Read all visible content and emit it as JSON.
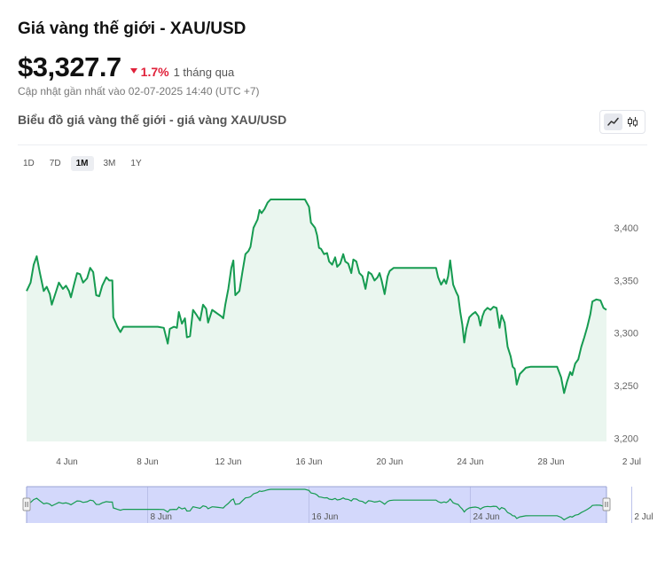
{
  "header": {
    "title": "Giá vàng thế giới - XAU/USD",
    "price": "$3,327.7",
    "change": "1.7%",
    "period": "1 tháng qua",
    "updated": "Cập nhật gần nhất vào 02-07-2025 14:40 (UTC +7)"
  },
  "chart_section": {
    "title": "Biểu đồ giá vàng thế giới - giá vàng XAU/USD",
    "ranges": [
      "1D",
      "7D",
      "1M",
      "3M",
      "1Y"
    ],
    "active_range": "1M",
    "chart_types": [
      "line-chart-icon",
      "candlestick-icon"
    ],
    "active_chart_type": "line-chart-icon"
  },
  "colors": {
    "line": "#169b51",
    "area": "#eaf6ef",
    "navigator_fill": "#d3d8fb",
    "down": "#e0213a"
  },
  "chart_data": {
    "type": "area",
    "title": "",
    "xlabel": "",
    "ylabel": "",
    "ylim": [
      3197,
      3427
    ],
    "y_ticks": [
      3200,
      3250,
      3300,
      3350,
      3400
    ],
    "y_tick_labels": [
      "3,200",
      "3,250",
      "3,300",
      "3,350",
      "3,400"
    ],
    "x_ticks": [
      4,
      8,
      12,
      16,
      20,
      24,
      28,
      32
    ],
    "x_tick_labels": [
      "4 Jun",
      "8 Jun",
      "12 Jun",
      "16 Jun",
      "20 Jun",
      "24 Jun",
      "28 Jun",
      "2 Jul"
    ],
    "navigator_ticks": [
      8,
      16,
      24,
      32
    ],
    "navigator_tick_labels": [
      "8 Jun",
      "16 Jun",
      "24 Jun",
      "2 Jul"
    ],
    "x_unit": "day of June 2025 (32 = 2 Jul)",
    "series": [
      {
        "points": [
          [
            2.0,
            3340
          ],
          [
            2.2,
            3348
          ],
          [
            2.35,
            3365
          ],
          [
            2.5,
            3373
          ],
          [
            2.65,
            3358
          ],
          [
            2.85,
            3340
          ],
          [
            3.0,
            3344
          ],
          [
            3.15,
            3337
          ],
          [
            3.25,
            3327
          ],
          [
            3.45,
            3339
          ],
          [
            3.6,
            3348
          ],
          [
            3.8,
            3342
          ],
          [
            3.95,
            3345
          ],
          [
            4.1,
            3340
          ],
          [
            4.2,
            3334
          ],
          [
            4.35,
            3346
          ],
          [
            4.5,
            3357
          ],
          [
            4.65,
            3356
          ],
          [
            4.8,
            3348
          ],
          [
            5.0,
            3352
          ],
          [
            5.15,
            3362
          ],
          [
            5.3,
            3358
          ],
          [
            5.45,
            3336
          ],
          [
            5.6,
            3335
          ],
          [
            5.75,
            3345
          ],
          [
            5.95,
            3353
          ],
          [
            6.1,
            3350
          ],
          [
            6.25,
            3350
          ],
          [
            6.3,
            3315
          ],
          [
            6.5,
            3306
          ],
          [
            6.65,
            3301
          ],
          [
            6.8,
            3306
          ],
          [
            7.0,
            3306
          ],
          [
            7.5,
            3306
          ],
          [
            8.0,
            3306
          ],
          [
            8.5,
            3306
          ],
          [
            8.8,
            3305
          ],
          [
            9.0,
            3290
          ],
          [
            9.1,
            3304
          ],
          [
            9.3,
            3306
          ],
          [
            9.45,
            3305
          ],
          [
            9.55,
            3320
          ],
          [
            9.7,
            3309
          ],
          [
            9.85,
            3314
          ],
          [
            9.95,
            3296
          ],
          [
            10.1,
            3297
          ],
          [
            10.25,
            3322
          ],
          [
            10.4,
            3318
          ],
          [
            10.6,
            3312
          ],
          [
            10.75,
            3327
          ],
          [
            10.9,
            3323
          ],
          [
            11.0,
            3310
          ],
          [
            11.2,
            3322
          ],
          [
            11.35,
            3320
          ],
          [
            11.5,
            3318
          ],
          [
            11.65,
            3316
          ],
          [
            11.75,
            3314
          ],
          [
            11.85,
            3327
          ],
          [
            12.0,
            3342
          ],
          [
            12.15,
            3362
          ],
          [
            12.25,
            3369
          ],
          [
            12.35,
            3336
          ],
          [
            12.55,
            3340
          ],
          [
            12.7,
            3358
          ],
          [
            12.85,
            3375
          ],
          [
            13.0,
            3378
          ],
          [
            13.1,
            3382
          ],
          [
            13.25,
            3400
          ],
          [
            13.35,
            3404
          ],
          [
            13.45,
            3408
          ],
          [
            13.55,
            3417
          ],
          [
            13.65,
            3414
          ],
          [
            13.8,
            3418
          ],
          [
            13.95,
            3424
          ],
          [
            14.1,
            3427
          ],
          [
            14.5,
            3427
          ],
          [
            15.0,
            3427
          ],
          [
            15.5,
            3427
          ],
          [
            15.8,
            3427
          ],
          [
            16.0,
            3420
          ],
          [
            16.1,
            3405
          ],
          [
            16.3,
            3400
          ],
          [
            16.4,
            3393
          ],
          [
            16.5,
            3381
          ],
          [
            16.6,
            3380
          ],
          [
            16.75,
            3375
          ],
          [
            16.9,
            3376
          ],
          [
            17.0,
            3368
          ],
          [
            17.15,
            3365
          ],
          [
            17.3,
            3372
          ],
          [
            17.4,
            3363
          ],
          [
            17.55,
            3366
          ],
          [
            17.7,
            3375
          ],
          [
            17.8,
            3368
          ],
          [
            17.95,
            3366
          ],
          [
            18.1,
            3357
          ],
          [
            18.2,
            3370
          ],
          [
            18.35,
            3368
          ],
          [
            18.5,
            3357
          ],
          [
            18.65,
            3354
          ],
          [
            18.8,
            3342
          ],
          [
            18.95,
            3358
          ],
          [
            19.1,
            3356
          ],
          [
            19.25,
            3350
          ],
          [
            19.4,
            3353
          ],
          [
            19.5,
            3357
          ],
          [
            19.6,
            3350
          ],
          [
            19.75,
            3337
          ],
          [
            19.9,
            3354
          ],
          [
            20.0,
            3359
          ],
          [
            20.2,
            3362
          ],
          [
            20.5,
            3362
          ],
          [
            21.0,
            3362
          ],
          [
            21.5,
            3362
          ],
          [
            22.0,
            3362
          ],
          [
            22.3,
            3362
          ],
          [
            22.4,
            3353
          ],
          [
            22.55,
            3346
          ],
          [
            22.7,
            3351
          ],
          [
            22.8,
            3347
          ],
          [
            22.9,
            3354
          ],
          [
            23.0,
            3369
          ],
          [
            23.15,
            3346
          ],
          [
            23.3,
            3339
          ],
          [
            23.4,
            3335
          ],
          [
            23.5,
            3320
          ],
          [
            23.6,
            3308
          ],
          [
            23.7,
            3291
          ],
          [
            23.8,
            3304
          ],
          [
            23.95,
            3315
          ],
          [
            24.1,
            3318
          ],
          [
            24.25,
            3320
          ],
          [
            24.4,
            3316
          ],
          [
            24.5,
            3307
          ],
          [
            24.6,
            3316
          ],
          [
            24.7,
            3321
          ],
          [
            24.85,
            3324
          ],
          [
            25.0,
            3322
          ],
          [
            25.15,
            3325
          ],
          [
            25.3,
            3324
          ],
          [
            25.45,
            3305
          ],
          [
            25.55,
            3317
          ],
          [
            25.7,
            3310
          ],
          [
            25.85,
            3287
          ],
          [
            26.0,
            3278
          ],
          [
            26.1,
            3268
          ],
          [
            26.2,
            3266
          ],
          [
            26.3,
            3251
          ],
          [
            26.45,
            3261
          ],
          [
            26.6,
            3264
          ],
          [
            26.75,
            3267
          ],
          [
            27.0,
            3268
          ],
          [
            27.5,
            3268
          ],
          [
            28.0,
            3268
          ],
          [
            28.3,
            3268
          ],
          [
            28.5,
            3258
          ],
          [
            28.65,
            3243
          ],
          [
            28.8,
            3254
          ],
          [
            28.95,
            3263
          ],
          [
            29.05,
            3260
          ],
          [
            29.2,
            3271
          ],
          [
            29.35,
            3275
          ],
          [
            29.5,
            3287
          ],
          [
            29.65,
            3296
          ],
          [
            29.8,
            3306
          ],
          [
            29.95,
            3318
          ],
          [
            30.05,
            3330
          ],
          [
            30.25,
            3332
          ],
          [
            30.45,
            3331
          ],
          [
            30.6,
            3324
          ],
          [
            30.75,
            3322
          ]
        ]
      }
    ],
    "grid": false,
    "legend": "none"
  }
}
